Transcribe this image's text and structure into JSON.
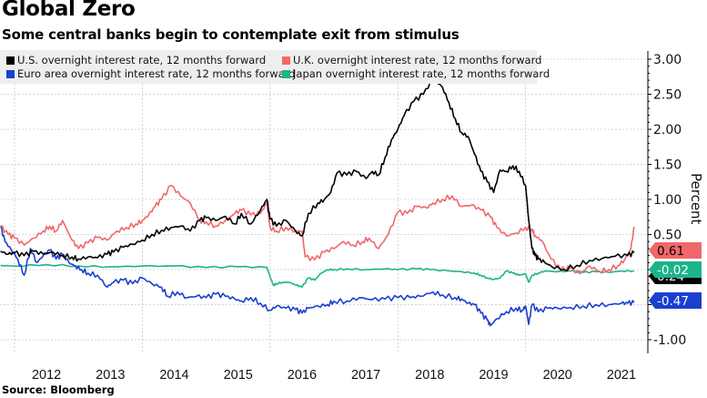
{
  "header": {
    "title": "Global Zero",
    "subtitle": "Some central banks begin to contemplate exit from stimulus"
  },
  "footer": {
    "source": "Source: Bloomberg"
  },
  "chart_data": {
    "type": "line",
    "title": "Global Zero",
    "subtitle": "Some central banks begin to contemplate exit from stimulus",
    "xlabel": "",
    "ylabel": "Percent",
    "x_tick_labels": [
      "2012",
      "2013",
      "2014",
      "2015",
      "2016",
      "2017",
      "2018",
      "2019",
      "2020",
      "2021"
    ],
    "y_tick_labels": [
      "3.00",
      "2.50",
      "2.00",
      "1.50",
      "1.00",
      "0.50",
      "-1.00"
    ],
    "y_ticks": [
      3.0,
      2.5,
      2.0,
      1.5,
      1.0,
      0.5,
      -1.0
    ],
    "ylim": [
      -1.2,
      3.1
    ],
    "xlim": [
      2011.77,
      2021.7
    ],
    "grid": true,
    "legend_position": "top-left",
    "axis_side": "right",
    "series": [
      {
        "name": "U.S. overnight interest rate, 12 months forward",
        "color": "#000000",
        "last_value": "0.24",
        "label_text_color": "#ffffff",
        "x": [
          2011.78,
          2011.9,
          2012.0,
          2012.15,
          2012.3,
          2012.45,
          2012.6,
          2012.75,
          2012.9,
          2013.0,
          2013.15,
          2013.3,
          2013.45,
          2013.55,
          2013.7,
          2013.85,
          2014.0,
          2014.15,
          2014.3,
          2014.45,
          2014.6,
          2014.75,
          2014.9,
          2015.0,
          2015.15,
          2015.3,
          2015.45,
          2015.55,
          2015.7,
          2015.85,
          2015.95,
          2016.0,
          2016.1,
          2016.25,
          2016.4,
          2016.5,
          2016.6,
          2016.75,
          2016.85,
          2016.95,
          2017.05,
          2017.2,
          2017.35,
          2017.5,
          2017.6,
          2017.7,
          2017.8,
          2017.9,
          2018.0,
          2018.1,
          2018.25,
          2018.4,
          2018.55,
          2018.7,
          2018.8,
          2018.9,
          2019.0,
          2019.1,
          2019.2,
          2019.3,
          2019.4,
          2019.5,
          2019.6,
          2019.7,
          2019.8,
          2019.9,
          2020.0,
          2020.05,
          2020.1,
          2020.15,
          2020.2,
          2020.3,
          2020.4,
          2020.6,
          2020.8,
          2021.0,
          2021.2,
          2021.4,
          2021.6,
          2021.7
        ],
        "values": [
          0.26,
          0.22,
          0.24,
          0.2,
          0.26,
          0.22,
          0.25,
          0.2,
          0.18,
          0.15,
          0.18,
          0.17,
          0.22,
          0.25,
          0.32,
          0.36,
          0.42,
          0.5,
          0.56,
          0.6,
          0.62,
          0.55,
          0.7,
          0.74,
          0.7,
          0.76,
          0.65,
          0.8,
          0.65,
          0.85,
          1.0,
          0.72,
          0.62,
          0.7,
          0.55,
          0.48,
          0.8,
          0.95,
          1.0,
          1.1,
          1.38,
          1.35,
          1.4,
          1.3,
          1.4,
          1.35,
          1.6,
          1.85,
          2.0,
          2.2,
          2.4,
          2.5,
          2.72,
          2.6,
          2.38,
          2.15,
          1.95,
          1.9,
          1.65,
          1.4,
          1.25,
          1.1,
          1.42,
          1.4,
          1.48,
          1.4,
          1.2,
          0.7,
          0.3,
          0.2,
          0.15,
          0.1,
          0.05,
          0.0,
          0.06,
          0.13,
          0.16,
          0.19,
          0.2,
          0.24
        ]
      },
      {
        "name": "U.K. overnight interest rate, 12 months forward",
        "color": "#f0686a",
        "last_value": "0.61",
        "label_text_color": "#000000",
        "x": [
          2011.78,
          2011.9,
          2012.0,
          2012.15,
          2012.3,
          2012.45,
          2012.55,
          2012.65,
          2012.75,
          2012.9,
          2013.0,
          2013.15,
          2013.3,
          2013.45,
          2013.6,
          2013.75,
          2013.9,
          2014.0,
          2014.1,
          2014.2,
          2014.3,
          2014.45,
          2014.6,
          2014.75,
          2014.9,
          2015.0,
          2015.15,
          2015.3,
          2015.45,
          2015.55,
          2015.7,
          2015.85,
          2015.95,
          2016.0,
          2016.1,
          2016.25,
          2016.4,
          2016.5,
          2016.55,
          2016.7,
          2016.85,
          2017.0,
          2017.15,
          2017.3,
          2017.45,
          2017.55,
          2017.7,
          2017.85,
          2018.0,
          2018.15,
          2018.3,
          2018.45,
          2018.55,
          2018.7,
          2018.85,
          2019.0,
          2019.15,
          2019.3,
          2019.45,
          2019.55,
          2019.7,
          2019.85,
          2020.0,
          2020.1,
          2020.15,
          2020.25,
          2020.4,
          2020.55,
          2020.7,
          2020.85,
          2021.0,
          2021.15,
          2021.3,
          2021.45,
          2021.55,
          2021.65,
          2021.7
        ],
        "values": [
          0.62,
          0.5,
          0.45,
          0.35,
          0.45,
          0.55,
          0.62,
          0.55,
          0.7,
          0.42,
          0.3,
          0.38,
          0.46,
          0.42,
          0.55,
          0.6,
          0.65,
          0.7,
          0.78,
          0.9,
          1.0,
          1.2,
          1.05,
          0.95,
          0.7,
          0.68,
          0.62,
          0.7,
          0.8,
          0.85,
          0.78,
          0.8,
          0.95,
          0.6,
          0.55,
          0.6,
          0.55,
          0.55,
          0.18,
          0.14,
          0.25,
          0.3,
          0.4,
          0.35,
          0.4,
          0.45,
          0.3,
          0.5,
          0.82,
          0.8,
          0.9,
          0.88,
          0.95,
          1.0,
          1.05,
          0.9,
          0.92,
          0.85,
          0.75,
          0.6,
          0.48,
          0.52,
          0.6,
          0.58,
          0.48,
          0.42,
          0.15,
          0.0,
          0.02,
          -0.06,
          0.05,
          -0.02,
          0.0,
          0.06,
          0.14,
          0.3,
          0.61
        ]
      },
      {
        "name": "Euro area overnight interest rate, 12 months forward",
        "color": "#1a3fd0",
        "last_value": "-0.47",
        "label_text_color": "#ffffff",
        "x": [
          2011.78,
          2011.85,
          2011.95,
          2012.05,
          2012.15,
          2012.25,
          2012.35,
          2012.45,
          2012.55,
          2012.65,
          2012.75,
          2012.85,
          2012.95,
          2013.05,
          2013.15,
          2013.3,
          2013.45,
          2013.55,
          2013.7,
          2013.85,
          2014.0,
          2014.15,
          2014.3,
          2014.4,
          2014.55,
          2014.7,
          2014.85,
          2015.0,
          2015.15,
          2015.3,
          2015.45,
          2015.55,
          2015.7,
          2015.85,
          2016.0,
          2016.1,
          2016.25,
          2016.4,
          2016.5,
          2016.6,
          2016.75,
          2016.9,
          2017.0,
          2017.2,
          2017.4,
          2017.6,
          2017.8,
          2018.0,
          2018.2,
          2018.35,
          2018.55,
          2018.7,
          2018.9,
          2019.0,
          2019.1,
          2019.2,
          2019.3,
          2019.4,
          2019.45,
          2019.55,
          2019.7,
          2019.85,
          2019.95,
          2020.0,
          2020.05,
          2020.1,
          2020.2,
          2020.35,
          2020.5,
          2020.7,
          2020.9,
          2021.1,
          2021.3,
          2021.5,
          2021.6,
          2021.7
        ],
        "values": [
          0.62,
          0.4,
          0.28,
          0.15,
          -0.08,
          0.3,
          0.1,
          0.2,
          0.28,
          0.15,
          0.22,
          0.1,
          0.05,
          0.0,
          -0.05,
          -0.08,
          -0.25,
          -0.18,
          -0.15,
          -0.2,
          -0.12,
          -0.2,
          -0.25,
          -0.38,
          -0.32,
          -0.4,
          -0.38,
          -0.4,
          -0.35,
          -0.38,
          -0.42,
          -0.45,
          -0.4,
          -0.48,
          -0.58,
          -0.52,
          -0.55,
          -0.57,
          -0.62,
          -0.55,
          -0.52,
          -0.5,
          -0.45,
          -0.45,
          -0.4,
          -0.43,
          -0.42,
          -0.4,
          -0.4,
          -0.38,
          -0.32,
          -0.36,
          -0.4,
          -0.42,
          -0.48,
          -0.5,
          -0.62,
          -0.72,
          -0.8,
          -0.7,
          -0.6,
          -0.55,
          -0.58,
          -0.52,
          -0.78,
          -0.5,
          -0.6,
          -0.55,
          -0.55,
          -0.54,
          -0.52,
          -0.5,
          -0.5,
          -0.48,
          -0.48,
          -0.47
        ]
      },
      {
        "name": "Japan overnight interest rate, 12 months forward",
        "color": "#1db48a",
        "last_value": "-0.02",
        "label_text_color": "#ffffff",
        "x": [
          2011.78,
          2012.0,
          2012.5,
          2013.0,
          2013.5,
          2014.0,
          2014.5,
          2015.0,
          2015.5,
          2015.95,
          2016.0,
          2016.05,
          2016.1,
          2016.2,
          2016.3,
          2016.4,
          2016.5,
          2016.6,
          2016.7,
          2016.8,
          2016.9,
          2017.0,
          2017.2,
          2017.5,
          2017.8,
          2018.0,
          2018.3,
          2018.5,
          2018.8,
          2019.0,
          2019.2,
          2019.3,
          2019.4,
          2019.5,
          2019.6,
          2019.7,
          2019.8,
          2019.9,
          2020.0,
          2020.05,
          2020.1,
          2020.2,
          2020.3,
          2020.5,
          2020.7,
          2020.9,
          2021.1,
          2021.3,
          2021.5,
          2021.7
        ],
        "values": [
          0.06,
          0.05,
          0.07,
          0.05,
          0.04,
          0.05,
          0.05,
          0.03,
          0.04,
          0.03,
          -0.1,
          -0.22,
          -0.2,
          -0.18,
          -0.18,
          -0.22,
          -0.25,
          -0.12,
          -0.15,
          -0.05,
          0.0,
          0.0,
          0.01,
          0.0,
          0.01,
          0.0,
          0.01,
          0.0,
          -0.02,
          -0.03,
          -0.05,
          -0.08,
          -0.12,
          -0.14,
          -0.12,
          -0.02,
          -0.05,
          -0.08,
          -0.06,
          -0.18,
          -0.08,
          -0.05,
          -0.02,
          -0.03,
          -0.02,
          -0.04,
          -0.03,
          -0.04,
          -0.02,
          -0.02
        ]
      }
    ]
  }
}
